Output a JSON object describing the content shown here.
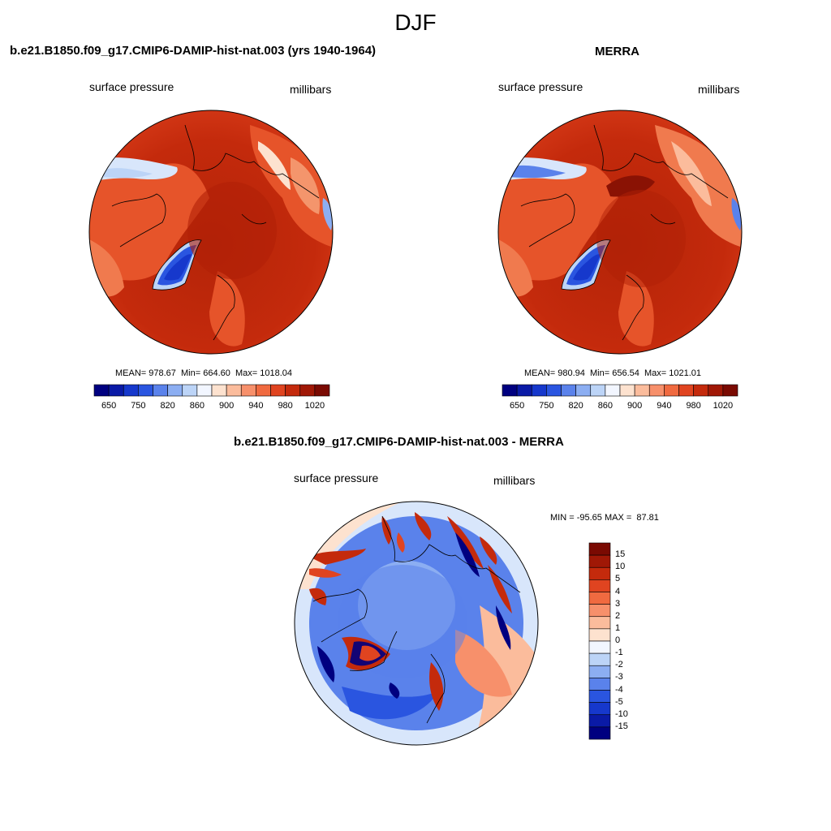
{
  "figure": {
    "season": "DJF"
  },
  "panels": {
    "model": {
      "title": "b.e21.B1850.f09_g17.CMIP6-DAMIP-hist-nat.003 (yrs 1940-1964)",
      "field_label": "surface pressure",
      "units_label": "millibars",
      "stats": "MEAN= 978.67  Min= 664.60  Max= 1018.04"
    },
    "obs": {
      "title": "MERRA",
      "field_label": "surface pressure",
      "units_label": "millibars",
      "stats": "MEAN= 980.94  Min= 656.54  Max= 1021.01"
    },
    "diff": {
      "title": "b.e21.B1850.f09_g17.CMIP6-DAMIP-hist-nat.003 - MERRA",
      "field_label": "surface pressure",
      "units_label": "millibars",
      "stats": "MIN = -95.65 MAX =  87.81"
    }
  },
  "colorbars": {
    "absolute": {
      "tick_labels": [
        "650",
        "750",
        "820",
        "860",
        "900",
        "940",
        "980",
        "1020"
      ],
      "colors": [
        "#000080",
        "#0a1aa6",
        "#1638cc",
        "#2a55e0",
        "#5a82eb",
        "#8caef2",
        "#bcd4f7",
        "#f2f6ff",
        "#fde2cf",
        "#fbbc9c",
        "#f7906b",
        "#f06a40",
        "#e04420",
        "#c42a0c",
        "#a01806",
        "#7a0a02"
      ]
    },
    "difference": {
      "tick_labels": [
        "15",
        "10",
        "5",
        "4",
        "3",
        "2",
        "1",
        "0",
        "-1",
        "-2",
        "-3",
        "-4",
        "-5",
        "-10",
        "-15"
      ],
      "colors": [
        "#7a0a02",
        "#a01806",
        "#c42a0c",
        "#e04420",
        "#f06a40",
        "#f7906b",
        "#fbbc9c",
        "#fde2cf",
        "#f2f6ff",
        "#bcd4f7",
        "#8caef2",
        "#5a82eb",
        "#2a55e0",
        "#1638cc",
        "#0a1aa6",
        "#000080"
      ]
    }
  }
}
